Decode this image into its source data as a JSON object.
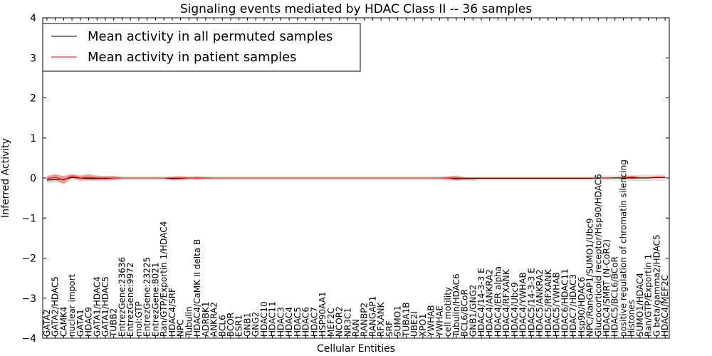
{
  "chart_data": {
    "type": "line",
    "title": "Signaling events mediated by HDAC Class II -- 36 samples",
    "xlabel": "Cellular Entities",
    "ylabel": "Inferred Activity",
    "ylim": [
      -4,
      4
    ],
    "yticks": [
      4,
      3,
      2,
      1,
      0,
      -1,
      -2,
      -3,
      -4
    ],
    "ytick_labels": [
      "4",
      "3",
      "2",
      "1",
      "0",
      "−1",
      "−2",
      "−3",
      "−4"
    ],
    "legend_position": "top-left",
    "categories": [
      "GATA2",
      "GATA2/HDAC5",
      "CAMK4",
      "nuclear import",
      "GATA1",
      "HDAC9",
      "GATA1/HDAC4",
      "GATA1/HDAC5",
      "TUBB2",
      "EntrezGene:23636",
      "EntrezGene:9972",
      "mol:GTP",
      "EntrezGene:23225",
      "EntrezGene:8021",
      "Ran/GTP/Exportin 1/HDAC4",
      "HDAC4/SRF",
      "NPC",
      "Tubulin",
      "HDAC4/CaMK II delta B",
      "ADRBK1",
      "ANKRA2",
      "BCL6",
      "BCOR",
      "ESR1",
      "GNB1",
      "GNG2",
      "HDAC10",
      "HDAC11",
      "HDAC3",
      "HDAC4",
      "HDAC5",
      "HDAC6",
      "HDAC7",
      "HSP90AA1",
      "MEF2C",
      "NCOR2",
      "NR3C1",
      "RAN",
      "RANBP2",
      "RANGAP1",
      "RFXANK",
      "SRF",
      "SUMO1",
      "TUBA1B",
      "UBE2I",
      "XPO1",
      "YWHAB",
      "YWHAE",
      "cell motility",
      "Tubulin/HDAC6",
      "BCL6/BCoR",
      "GNB1/GNG2",
      "HDAC4/14-3-3 E",
      "HDAC4/ANKRA2",
      "HDAC4/ER alpha",
      "HDAC4/RFXANK",
      "HDAC4/Ubc9",
      "HDAC4/YWHAB",
      "HDAC5/14-3-3 E",
      "HDAC5/ANKRA2",
      "HDAC5/RFXANK",
      "HDAC5/YWHAB",
      "HDAC6/HDAC11",
      "HDAC7/HDAC3",
      "Hsp90/HDAC6",
      "NPC/RanGAP1/SUMO1/Ubc9",
      "Glucocorticoid receptor/Hsp90/HDAC6",
      "HDAC4/SMRT (N-CoR2)",
      "HDAC5/BCL6/BCoR",
      "positive regulation of chromatin silencing",
      "Histones",
      "SUMO1/HDAC4",
      "Ran/GTP/Exportin 1",
      "G beta/gamma2/HDAC5",
      "HDAC4/MEF2C"
    ],
    "series": [
      {
        "name": "Mean activity in all permuted samples",
        "color": "#000000",
        "band_color": "#cccccc",
        "values": [
          -0.05,
          -0.04,
          -0.03,
          0.01,
          0.0,
          -0.01,
          -0.01,
          -0.01,
          0.0,
          0.0,
          0.0,
          0.0,
          0.0,
          0.0,
          0.0,
          -0.02,
          -0.01,
          0.0,
          0.0,
          0.0,
          0.0,
          0.0,
          0.0,
          0.0,
          0.0,
          0.0,
          0.0,
          0.0,
          0.0,
          0.0,
          0.0,
          0.0,
          0.0,
          0.0,
          0.0,
          0.0,
          0.0,
          0.0,
          0.0,
          0.0,
          0.0,
          0.0,
          0.0,
          0.0,
          0.0,
          0.0,
          0.0,
          0.0,
          0.0,
          -0.02,
          -0.02,
          -0.02,
          -0.01,
          -0.01,
          -0.01,
          -0.01,
          -0.01,
          -0.01,
          -0.01,
          -0.01,
          -0.01,
          -0.01,
          -0.01,
          -0.01,
          -0.01,
          -0.01,
          0.0,
          0.0,
          0.0,
          0.0,
          0.0,
          0.0,
          0.0,
          0.01,
          0.01
        ],
        "band": [
          0.08,
          0.08,
          0.08,
          0.06,
          0.06,
          0.06,
          0.06,
          0.06,
          0.06,
          0.05,
          0.05,
          0.05,
          0.05,
          0.05,
          0.05,
          0.05,
          0.05,
          0.05,
          0.05,
          0.05,
          0.05,
          0.05,
          0.05,
          0.05,
          0.05,
          0.05,
          0.05,
          0.05,
          0.05,
          0.05,
          0.05,
          0.05,
          0.05,
          0.05,
          0.05,
          0.05,
          0.05,
          0.05,
          0.05,
          0.05,
          0.05,
          0.05,
          0.05,
          0.05,
          0.05,
          0.05,
          0.05,
          0.05,
          0.05,
          0.05,
          0.05,
          0.05,
          0.05,
          0.05,
          0.05,
          0.05,
          0.05,
          0.05,
          0.05,
          0.05,
          0.05,
          0.05,
          0.05,
          0.05,
          0.05,
          0.05,
          0.06,
          0.06,
          0.06,
          0.07,
          0.08,
          0.08,
          0.08,
          0.08,
          0.08
        ]
      },
      {
        "name": "Mean activity in patient samples",
        "color": "#ff0000",
        "band_color": "#f08080",
        "values": [
          -0.02,
          0.02,
          -0.05,
          0.05,
          0.0,
          0.02,
          0.0,
          0.0,
          0.0,
          0.0,
          0.0,
          0.0,
          0.0,
          0.0,
          0.0,
          0.0,
          0.0,
          0.0,
          0.0,
          0.0,
          0.0,
          0.0,
          0.0,
          0.0,
          0.0,
          0.0,
          0.0,
          0.0,
          0.0,
          0.0,
          0.0,
          0.0,
          0.0,
          0.0,
          0.0,
          0.0,
          0.0,
          0.0,
          0.0,
          0.0,
          0.0,
          0.0,
          0.0,
          0.0,
          0.0,
          0.0,
          0.0,
          0.0,
          0.0,
          0.0,
          0.0,
          0.0,
          0.0,
          0.0,
          0.0,
          0.0,
          0.0,
          0.0,
          0.0,
          0.0,
          0.0,
          0.0,
          0.0,
          0.0,
          0.0,
          0.0,
          0.0,
          0.0,
          0.01,
          0.01,
          0.02,
          0.01,
          0.01,
          0.02,
          0.02
        ],
        "band": [
          0.07,
          0.08,
          0.1,
          0.05,
          0.06,
          0.08,
          0.06,
          0.05,
          0.05,
          0.01,
          0.01,
          0.01,
          0.01,
          0.01,
          0.01,
          0.04,
          0.05,
          0.02,
          0.04,
          0.02,
          0.01,
          0.01,
          0.01,
          0.01,
          0.01,
          0.01,
          0.01,
          0.01,
          0.01,
          0.01,
          0.01,
          0.01,
          0.01,
          0.01,
          0.01,
          0.01,
          0.01,
          0.01,
          0.01,
          0.01,
          0.01,
          0.01,
          0.01,
          0.01,
          0.01,
          0.01,
          0.01,
          0.01,
          0.04,
          0.06,
          0.02,
          0.01,
          0.01,
          0.01,
          0.01,
          0.01,
          0.01,
          0.01,
          0.01,
          0.01,
          0.01,
          0.01,
          0.01,
          0.01,
          0.01,
          0.01,
          0.01,
          0.02,
          0.01,
          0.03,
          0.04,
          0.02,
          0.02,
          0.02,
          0.02
        ]
      }
    ]
  }
}
